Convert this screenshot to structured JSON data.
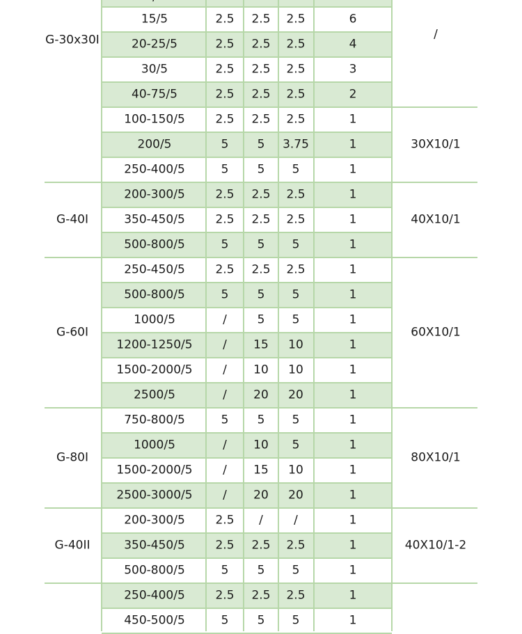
{
  "row_fill_color": "#d9ead3",
  "grid_color": "#b6d7a8",
  "top_partial_text": "/",
  "groups": [
    {
      "model": "G-30x30I",
      "busbar": "/",
      "rows": [
        {
          "ratio": "15/5",
          "c1": "2.5",
          "c2": "2.5",
          "c3": "2.5",
          "turns": "6"
        },
        {
          "ratio": "20-25/5",
          "c1": "2.5",
          "c2": "2.5",
          "c3": "2.5",
          "turns": "4"
        },
        {
          "ratio": "30/5",
          "c1": "2.5",
          "c2": "2.5",
          "c3": "2.5",
          "turns": "3"
        },
        {
          "ratio": "40-75/5",
          "c1": "2.5",
          "c2": "2.5",
          "c3": "2.5",
          "turns": "2"
        },
        {
          "ratio": "100-150/5",
          "c1": "2.5",
          "c2": "2.5",
          "c3": "2.5",
          "turns": "1"
        },
        {
          "ratio": "200/5",
          "c1": "5",
          "c2": "5",
          "c3": "3.75",
          "turns": "1"
        },
        {
          "ratio": "250-400/5",
          "c1": "5",
          "c2": "5",
          "c3": "5",
          "turns": "1"
        }
      ],
      "busbar2": "30X10/1"
    },
    {
      "model": "G-40I",
      "busbar": "40X10/1",
      "rows": [
        {
          "ratio": "200-300/5",
          "c1": "2.5",
          "c2": "2.5",
          "c3": "2.5",
          "turns": "1"
        },
        {
          "ratio": "350-450/5",
          "c1": "2.5",
          "c2": "2.5",
          "c3": "2.5",
          "turns": "1"
        },
        {
          "ratio": "500-800/5",
          "c1": "5",
          "c2": "5",
          "c3": "5",
          "turns": "1"
        }
      ]
    },
    {
      "model": "G-60I",
      "busbar": "60X10/1",
      "rows": [
        {
          "ratio": "250-450/5",
          "c1": "2.5",
          "c2": "2.5",
          "c3": "2.5",
          "turns": "1"
        },
        {
          "ratio": "500-800/5",
          "c1": "5",
          "c2": "5",
          "c3": "5",
          "turns": "1"
        },
        {
          "ratio": "1000/5",
          "c1": "/",
          "c2": "5",
          "c3": "5",
          "turns": "1"
        },
        {
          "ratio": "1200-1250/5",
          "c1": "/",
          "c2": "15",
          "c3": "10",
          "turns": "1"
        },
        {
          "ratio": "1500-2000/5",
          "c1": "/",
          "c2": "10",
          "c3": "10",
          "turns": "1"
        },
        {
          "ratio": "2500/5",
          "c1": "/",
          "c2": "20",
          "c3": "20",
          "turns": "1"
        }
      ]
    },
    {
      "model": "G-80I",
      "busbar": "80X10/1",
      "rows": [
        {
          "ratio": "750-800/5",
          "c1": "5",
          "c2": "5",
          "c3": "5",
          "turns": "1"
        },
        {
          "ratio": "1000/5",
          "c1": "/",
          "c2": "10",
          "c3": "5",
          "turns": "1"
        },
        {
          "ratio": "1500-2000/5",
          "c1": "/",
          "c2": "15",
          "c3": "10",
          "turns": "1"
        },
        {
          "ratio": "2500-3000/5",
          "c1": "/",
          "c2": "20",
          "c3": "20",
          "turns": "1"
        }
      ]
    },
    {
      "model": "G-40II",
      "busbar": "40X10/1-2",
      "rows": [
        {
          "ratio": "200-300/5",
          "c1": "2.5",
          "c2": "/",
          "c3": "/",
          "turns": "1"
        },
        {
          "ratio": "350-450/5",
          "c1": "2.5",
          "c2": "2.5",
          "c3": "2.5",
          "turns": "1"
        },
        {
          "ratio": "500-800/5",
          "c1": "5",
          "c2": "5",
          "c3": "5",
          "turns": "1"
        }
      ]
    },
    {
      "model": "",
      "busbar": "",
      "rows": [
        {
          "ratio": "250-400/5",
          "c1": "2.5",
          "c2": "2.5",
          "c3": "2.5",
          "turns": "1"
        },
        {
          "ratio": "450-500/5",
          "c1": "5",
          "c2": "5",
          "c3": "5",
          "turns": "1"
        }
      ]
    }
  ]
}
